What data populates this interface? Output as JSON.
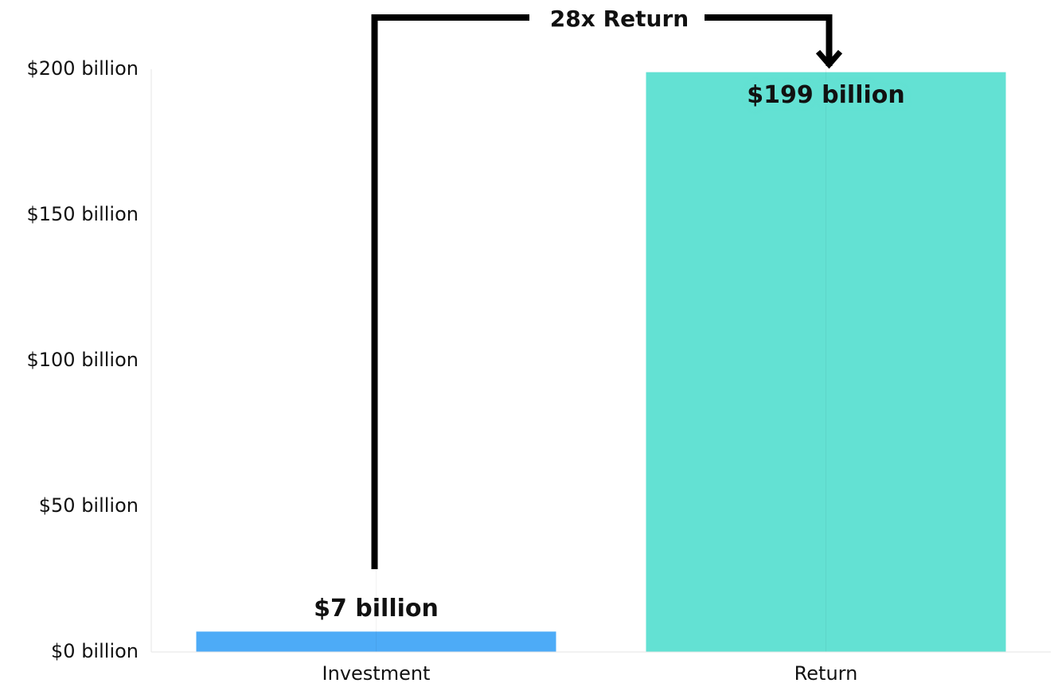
{
  "chart_data": {
    "type": "bar",
    "categories": [
      "Investment",
      "Return"
    ],
    "values": [
      7,
      199
    ],
    "value_labels": [
      "$7 billion",
      "$199 billion"
    ],
    "colors": [
      "#4dabf7",
      "#63e1d3"
    ],
    "ylim": [
      0,
      200
    ],
    "yticks": [
      {
        "value": 0,
        "label": "$0 billion"
      },
      {
        "value": 50,
        "label": "$50 billion"
      },
      {
        "value": 100,
        "label": "$100 billion"
      },
      {
        "value": 150,
        "label": "$150 billion"
      },
      {
        "value": 200,
        "label": "$200 billion"
      }
    ],
    "annotation": "28x Return",
    "grid": false
  }
}
